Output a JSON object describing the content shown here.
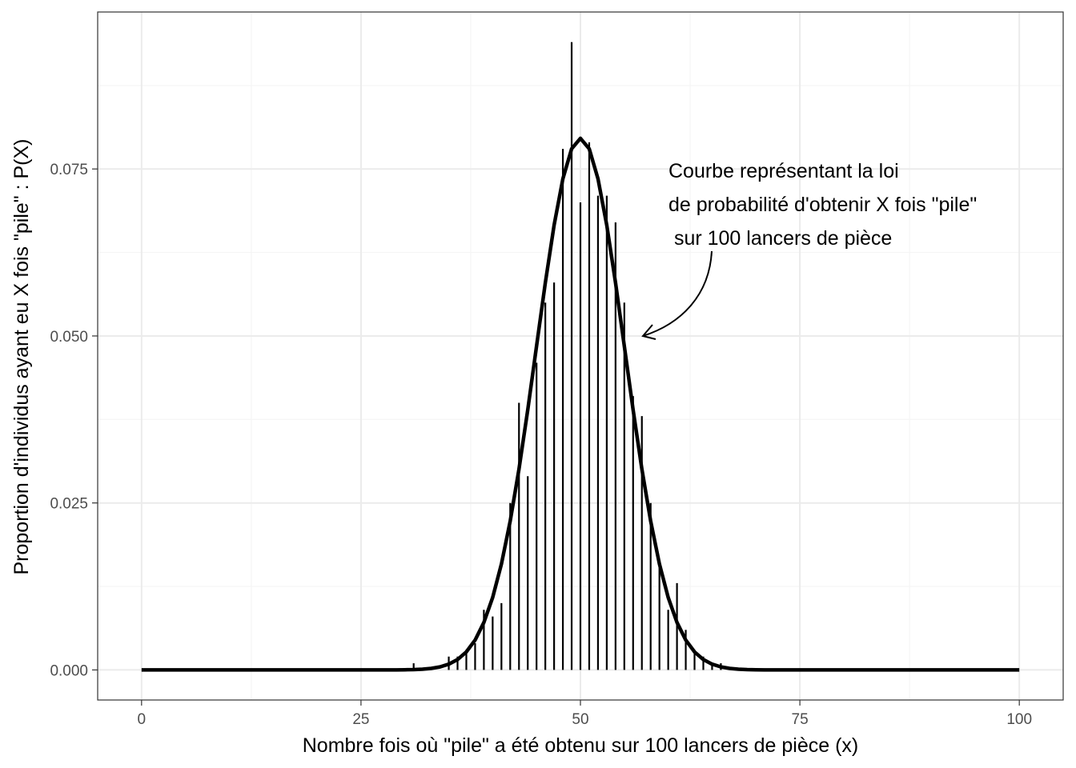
{
  "chart_data": {
    "type": "bar",
    "title": "",
    "xlabel": "Nombre fois où \"pile\" a été obtenu sur 100 lancers de pièce (x)",
    "ylabel": "Proportion d'individus ayant eu X fois \"pile\" : P(X)",
    "xlim": [
      -5,
      105
    ],
    "ylim": [
      -0.0045,
      0.0985
    ],
    "x_ticks": [
      0,
      25,
      50,
      75,
      100
    ],
    "x_tick_labels": [
      "0",
      "25",
      "50",
      "75",
      "100"
    ],
    "y_ticks": [
      0,
      0.025,
      0.05,
      0.075
    ],
    "y_tick_labels": [
      "0.000",
      "0.025",
      "0.050",
      "0.075"
    ],
    "grid": true,
    "bars": {
      "x": [
        31,
        35,
        36,
        37,
        38,
        39,
        40,
        41,
        42,
        43,
        44,
        45,
        46,
        47,
        48,
        49,
        50,
        51,
        52,
        53,
        54,
        55,
        56,
        57,
        58,
        59,
        60,
        61,
        62,
        63,
        64,
        65,
        66
      ],
      "values": [
        0.001,
        0.002,
        0.002,
        0.003,
        0.004,
        0.009,
        0.008,
        0.01,
        0.025,
        0.04,
        0.029,
        0.046,
        0.055,
        0.058,
        0.078,
        0.094,
        0.07,
        0.079,
        0.071,
        0.071,
        0.067,
        0.055,
        0.041,
        0.038,
        0.025,
        0.016,
        0.009,
        0.013,
        0.006,
        0.003,
        0.002,
        0.001,
        0.001
      ]
    },
    "curve": {
      "description_key": "binomial",
      "n": 100,
      "p": 0.5,
      "x_range": [
        0,
        100
      ]
    },
    "annotation": {
      "lines": [
        "Courbe représentant la loi",
        "de probabilité d'obtenir X fois \"pile\"",
        " sur 100 lancers de pièce"
      ],
      "arrow_from": [
        64.5,
        0.0625
      ],
      "arrow_to": [
        56.5,
        0.05
      ]
    },
    "colors": {
      "background": "#ffffff",
      "grid_major": "#ebebeb",
      "grid_minor": "#f5f5f5",
      "panel_border": "#333333",
      "bars": "#000000",
      "curve": "#000000",
      "tick_text": "#4d4d4d"
    }
  }
}
